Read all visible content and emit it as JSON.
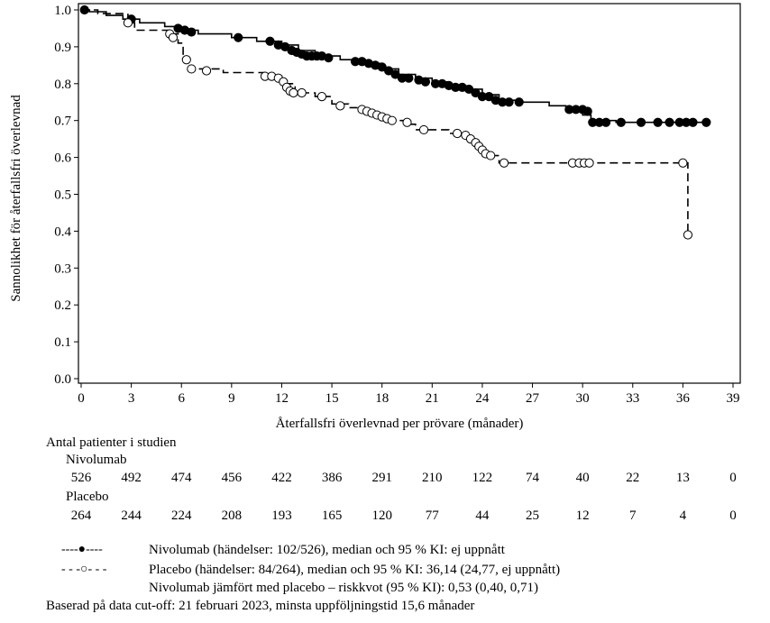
{
  "chart_data": {
    "type": "line",
    "subtype": "kaplan-meier",
    "xlabel": "Återfallsfri överlevnad per prövare (månader)",
    "ylabel": "Sannolikhet för återfallsfri överlevnad",
    "xlim": [
      0,
      39
    ],
    "ylim": [
      0,
      1
    ],
    "x_ticks": [
      "0",
      "3",
      "6",
      "9",
      "12",
      "15",
      "18",
      "21",
      "24",
      "27",
      "30",
      "33",
      "36",
      "39"
    ],
    "y_ticks": [
      "0.0",
      "0.1",
      "0.2",
      "0.3",
      "0.4",
      "0.5",
      "0.6",
      "0.7",
      "0.8",
      "0.9",
      "1.0"
    ],
    "series": [
      {
        "name": "Nivolumab",
        "style": "solid",
        "marker": "filled-circle",
        "steps": [
          [
            0,
            1.0
          ],
          [
            0.5,
            0.995
          ],
          [
            1.5,
            0.985
          ],
          [
            2.5,
            0.975
          ],
          [
            3.5,
            0.965
          ],
          [
            5,
            0.955
          ],
          [
            6,
            0.945
          ],
          [
            7,
            0.935
          ],
          [
            9,
            0.925
          ],
          [
            10.5,
            0.915
          ],
          [
            12,
            0.905
          ],
          [
            13,
            0.89
          ],
          [
            14,
            0.875
          ],
          [
            15.5,
            0.865
          ],
          [
            17,
            0.855
          ],
          [
            18,
            0.84
          ],
          [
            19,
            0.825
          ],
          [
            20,
            0.815
          ],
          [
            21,
            0.805
          ],
          [
            22,
            0.795
          ],
          [
            23,
            0.785
          ],
          [
            24,
            0.77
          ],
          [
            25,
            0.755
          ],
          [
            26,
            0.75
          ],
          [
            28,
            0.74
          ],
          [
            29,
            0.73
          ],
          [
            30,
            0.715
          ],
          [
            30.5,
            0.7
          ],
          [
            32,
            0.695
          ],
          [
            37.5,
            0.695
          ]
        ],
        "censored": [
          [
            0.2,
            1.0
          ],
          [
            3,
            0.975
          ],
          [
            5.8,
            0.95
          ],
          [
            6.2,
            0.945
          ],
          [
            6.6,
            0.94
          ],
          [
            9.4,
            0.925
          ],
          [
            11.3,
            0.915
          ],
          [
            11.8,
            0.905
          ],
          [
            12.2,
            0.9
          ],
          [
            12.6,
            0.89
          ],
          [
            12.9,
            0.885
          ],
          [
            13.2,
            0.88
          ],
          [
            13.5,
            0.875
          ],
          [
            13.8,
            0.875
          ],
          [
            14.1,
            0.875
          ],
          [
            14.4,
            0.875
          ],
          [
            14.8,
            0.87
          ],
          [
            16.4,
            0.86
          ],
          [
            16.8,
            0.86
          ],
          [
            17.2,
            0.855
          ],
          [
            17.6,
            0.85
          ],
          [
            18,
            0.845
          ],
          [
            18.4,
            0.835
          ],
          [
            18.8,
            0.825
          ],
          [
            19.2,
            0.815
          ],
          [
            19.6,
            0.815
          ],
          [
            20.2,
            0.81
          ],
          [
            20.6,
            0.805
          ],
          [
            21.2,
            0.8
          ],
          [
            21.6,
            0.8
          ],
          [
            22,
            0.795
          ],
          [
            22.4,
            0.79
          ],
          [
            22.8,
            0.79
          ],
          [
            23.2,
            0.785
          ],
          [
            23.6,
            0.775
          ],
          [
            24,
            0.765
          ],
          [
            24.4,
            0.765
          ],
          [
            24.8,
            0.755
          ],
          [
            25.2,
            0.75
          ],
          [
            25.6,
            0.75
          ],
          [
            26.2,
            0.75
          ],
          [
            29.2,
            0.73
          ],
          [
            29.6,
            0.73
          ],
          [
            30,
            0.73
          ],
          [
            30.3,
            0.725
          ],
          [
            30.6,
            0.695
          ],
          [
            31,
            0.695
          ],
          [
            31.4,
            0.695
          ],
          [
            32.3,
            0.695
          ],
          [
            33.5,
            0.695
          ],
          [
            34.5,
            0.695
          ],
          [
            35.2,
            0.695
          ],
          [
            35.8,
            0.695
          ],
          [
            36.2,
            0.695
          ],
          [
            36.6,
            0.695
          ],
          [
            37.4,
            0.695
          ]
        ]
      },
      {
        "name": "Placebo",
        "style": "dashed",
        "marker": "open-circle",
        "steps": [
          [
            0,
            1.0
          ],
          [
            1,
            0.99
          ],
          [
            2.8,
            0.965
          ],
          [
            3.2,
            0.945
          ],
          [
            5.3,
            0.935
          ],
          [
            5.8,
            0.91
          ],
          [
            6.1,
            0.865
          ],
          [
            6.4,
            0.84
          ],
          [
            8.5,
            0.83
          ],
          [
            11,
            0.82
          ],
          [
            12,
            0.8
          ],
          [
            12.8,
            0.775
          ],
          [
            14,
            0.765
          ],
          [
            15,
            0.745
          ],
          [
            16,
            0.735
          ],
          [
            17,
            0.725
          ],
          [
            17.5,
            0.71
          ],
          [
            18.5,
            0.7
          ],
          [
            19.5,
            0.69
          ],
          [
            20,
            0.675
          ],
          [
            22,
            0.665
          ],
          [
            23,
            0.645
          ],
          [
            23.6,
            0.625
          ],
          [
            24,
            0.605
          ],
          [
            25,
            0.585
          ],
          [
            36.3,
            0.585
          ],
          [
            36.3,
            0.39
          ]
        ],
        "censored": [
          [
            2.8,
            0.965
          ],
          [
            5.3,
            0.935
          ],
          [
            5.5,
            0.925
          ],
          [
            6.3,
            0.865
          ],
          [
            6.6,
            0.84
          ],
          [
            7.5,
            0.835
          ],
          [
            11,
            0.82
          ],
          [
            11.4,
            0.82
          ],
          [
            11.8,
            0.815
          ],
          [
            12.1,
            0.805
          ],
          [
            12.3,
            0.79
          ],
          [
            12.5,
            0.78
          ],
          [
            12.7,
            0.775
          ],
          [
            13.2,
            0.775
          ],
          [
            14.4,
            0.765
          ],
          [
            15.5,
            0.74
          ],
          [
            16.8,
            0.73
          ],
          [
            17.1,
            0.725
          ],
          [
            17.4,
            0.72
          ],
          [
            17.7,
            0.715
          ],
          [
            18,
            0.71
          ],
          [
            18.3,
            0.705
          ],
          [
            18.6,
            0.7
          ],
          [
            19.5,
            0.695
          ],
          [
            20.5,
            0.675
          ],
          [
            22.5,
            0.665
          ],
          [
            23,
            0.66
          ],
          [
            23.3,
            0.65
          ],
          [
            23.6,
            0.64
          ],
          [
            23.8,
            0.63
          ],
          [
            24,
            0.62
          ],
          [
            24.2,
            0.61
          ],
          [
            24.5,
            0.605
          ],
          [
            25.3,
            0.585
          ],
          [
            29.4,
            0.585
          ],
          [
            29.8,
            0.585
          ],
          [
            30.1,
            0.585
          ],
          [
            30.4,
            0.585
          ],
          [
            36,
            0.585
          ],
          [
            36.3,
            0.39
          ]
        ]
      }
    ]
  },
  "risk_table": {
    "title": "Antal patienter i studien",
    "rows": [
      {
        "name": "Nivolumab",
        "values": [
          "526",
          "492",
          "474",
          "456",
          "422",
          "386",
          "291",
          "210",
          "122",
          "74",
          "40",
          "22",
          "13",
          "0"
        ]
      },
      {
        "name": "Placebo",
        "values": [
          "264",
          "244",
          "224",
          "208",
          "193",
          "165",
          "120",
          "77",
          "44",
          "25",
          "12",
          "7",
          "4",
          "0"
        ]
      }
    ]
  },
  "legend": [
    {
      "symbol": "----●----",
      "label": "Nivolumab (händelser: 102/526), median och 95 % KI: ej uppnått"
    },
    {
      "symbol": "- - -○- - -",
      "label": "Placebo (händelser: 84/264), median och 95 % KI: 36,14 (24,77, ej uppnått)"
    },
    {
      "symbol": "",
      "label": "Nivolumab jämfört med placebo – riskkvot (95 % KI): 0,53 (0,40, 0,71)"
    }
  ],
  "footnote": "Baserad på data cut-off: 21 februari 2023, minsta uppföljningstid 15,6 månader"
}
